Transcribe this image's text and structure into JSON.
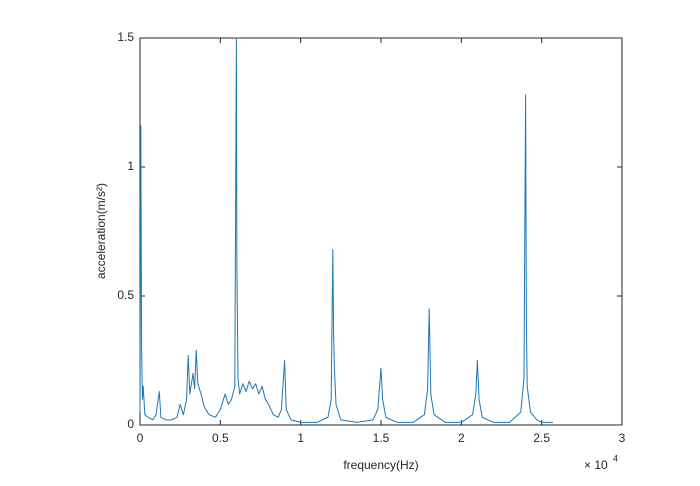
{
  "chart_data": {
    "type": "line",
    "x_label": "frequency(Hz)",
    "y_label": "acceleration(m/s²)",
    "x_scale_base": "× 10",
    "x_scale_exponent": "4",
    "xlim": [
      0,
      3
    ],
    "xticks": [
      0,
      0.5,
      1,
      1.5,
      2,
      2.5,
      3
    ],
    "ylim": [
      0,
      1.5
    ],
    "yticks": [
      0,
      0.5,
      1,
      1.5
    ],
    "grid": false,
    "box": true,
    "x": [
      0,
      0.005,
      0.01,
      0.015,
      0.02,
      0.03,
      0.05,
      0.08,
      0.1,
      0.12,
      0.13,
      0.16,
      0.2,
      0.23,
      0.25,
      0.27,
      0.29,
      0.3,
      0.31,
      0.33,
      0.34,
      0.35,
      0.36,
      0.38,
      0.4,
      0.43,
      0.47,
      0.5,
      0.53,
      0.55,
      0.57,
      0.59,
      0.6,
      0.603,
      0.61,
      0.62,
      0.64,
      0.66,
      0.68,
      0.7,
      0.72,
      0.74,
      0.76,
      0.78,
      0.8,
      0.83,
      0.86,
      0.88,
      0.9,
      0.91,
      0.94,
      1.0,
      1.1,
      1.17,
      1.19,
      1.2,
      1.205,
      1.21,
      1.22,
      1.25,
      1.35,
      1.45,
      1.48,
      1.5,
      1.51,
      1.53,
      1.6,
      1.7,
      1.77,
      1.79,
      1.8,
      1.81,
      1.83,
      1.9,
      2.0,
      2.07,
      2.09,
      2.1,
      2.11,
      2.13,
      2.2,
      2.3,
      2.37,
      2.39,
      2.4,
      2.405,
      2.41,
      2.43,
      2.47,
      2.5,
      2.55,
      2.57
    ],
    "series": [
      {
        "color": "#1f77b4",
        "values": [
          0.05,
          1.16,
          0.3,
          0.1,
          0.15,
          0.04,
          0.03,
          0.02,
          0.04,
          0.13,
          0.03,
          0.02,
          0.02,
          0.03,
          0.08,
          0.04,
          0.1,
          0.27,
          0.12,
          0.2,
          0.14,
          0.29,
          0.16,
          0.12,
          0.07,
          0.04,
          0.03,
          0.06,
          0.12,
          0.08,
          0.1,
          0.15,
          1.5,
          0.62,
          0.18,
          0.12,
          0.16,
          0.13,
          0.17,
          0.14,
          0.16,
          0.12,
          0.15,
          0.1,
          0.08,
          0.04,
          0.03,
          0.06,
          0.25,
          0.06,
          0.02,
          0.01,
          0.01,
          0.03,
          0.1,
          0.68,
          0.35,
          0.22,
          0.08,
          0.02,
          0.01,
          0.02,
          0.06,
          0.22,
          0.1,
          0.03,
          0.01,
          0.01,
          0.04,
          0.14,
          0.45,
          0.12,
          0.04,
          0.01,
          0.01,
          0.04,
          0.12,
          0.25,
          0.1,
          0.03,
          0.01,
          0.01,
          0.05,
          0.18,
          1.28,
          0.39,
          0.15,
          0.05,
          0.02,
          0.01,
          0.01,
          0.01
        ]
      }
    ]
  }
}
